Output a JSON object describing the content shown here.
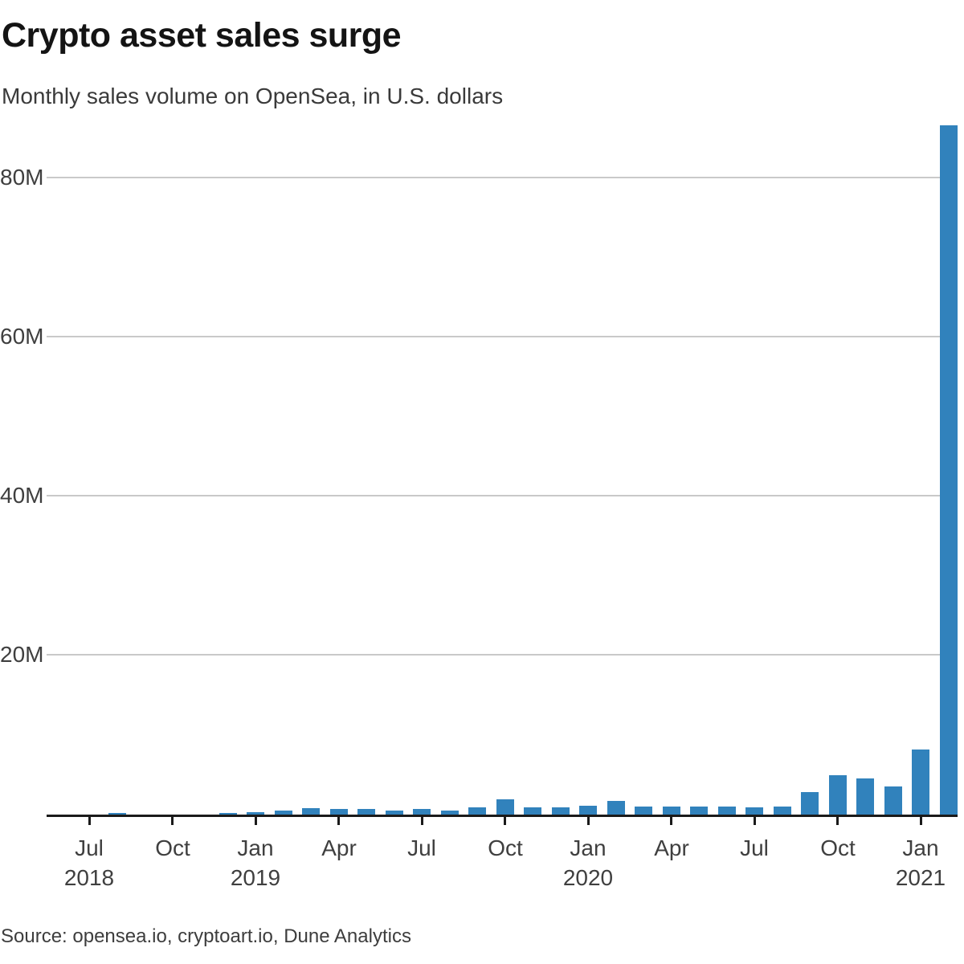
{
  "header": {
    "title": "Crypto asset sales surge",
    "subtitle": "Monthly sales volume on OpenSea, in U.S. dollars"
  },
  "footer": {
    "source": "Source: opensea.io, cryptoart.io, Dune Analytics"
  },
  "chart_data": {
    "type": "bar",
    "title": "Crypto asset sales surge",
    "subtitle": "Monthly sales volume on OpenSea, in U.S. dollars",
    "unit": "U.S. dollars (millions)",
    "bar_color": "#3182bc",
    "grid": true,
    "ylim": [
      0,
      90
    ],
    "yticks": [
      {
        "value": 20,
        "label": "20M"
      },
      {
        "value": 40,
        "label": "40M"
      },
      {
        "value": 60,
        "label": "60M"
      },
      {
        "value": 80,
        "label": "80M"
      }
    ],
    "categories": [
      "Jul 2018",
      "Aug 2018",
      "Sep 2018",
      "Oct 2018",
      "Nov 2018",
      "Dec 2018",
      "Jan 2019",
      "Feb 2019",
      "Mar 2019",
      "Apr 2019",
      "May 2019",
      "Jun 2019",
      "Jul 2019",
      "Aug 2019",
      "Sep 2019",
      "Oct 2019",
      "Nov 2019",
      "Dec 2019",
      "Jan 2020",
      "Feb 2020",
      "Mar 2020",
      "Apr 2020",
      "May 2020",
      "Jun 2020",
      "Jul 2020",
      "Aug 2020",
      "Sep 2020",
      "Oct 2020",
      "Nov 2020",
      "Dec 2020",
      "Jan 2021",
      "Feb 2021"
    ],
    "values": [
      0,
      0.2,
      0,
      0,
      0,
      0.2,
      0.3,
      0.5,
      0.8,
      0.75,
      0.7,
      0.55,
      0.75,
      0.55,
      0.9,
      1.9,
      0.9,
      0.9,
      1.1,
      1.75,
      1.05,
      1.0,
      1.0,
      1.0,
      0.95,
      1.0,
      2.8,
      4.9,
      4.5,
      3.5,
      8.2,
      86.7
    ],
    "xticks": [
      {
        "index": 0,
        "month": "Jul",
        "year": "2018"
      },
      {
        "index": 3,
        "month": "Oct",
        "year": ""
      },
      {
        "index": 6,
        "month": "Jan",
        "year": "2019"
      },
      {
        "index": 9,
        "month": "Apr",
        "year": ""
      },
      {
        "index": 12,
        "month": "Jul",
        "year": ""
      },
      {
        "index": 15,
        "month": "Oct",
        "year": ""
      },
      {
        "index": 18,
        "month": "Jan",
        "year": "2020"
      },
      {
        "index": 21,
        "month": "Apr",
        "year": ""
      },
      {
        "index": 24,
        "month": "Jul",
        "year": ""
      },
      {
        "index": 27,
        "month": "Oct",
        "year": ""
      },
      {
        "index": 30,
        "month": "Jan",
        "year": "2021"
      }
    ]
  }
}
